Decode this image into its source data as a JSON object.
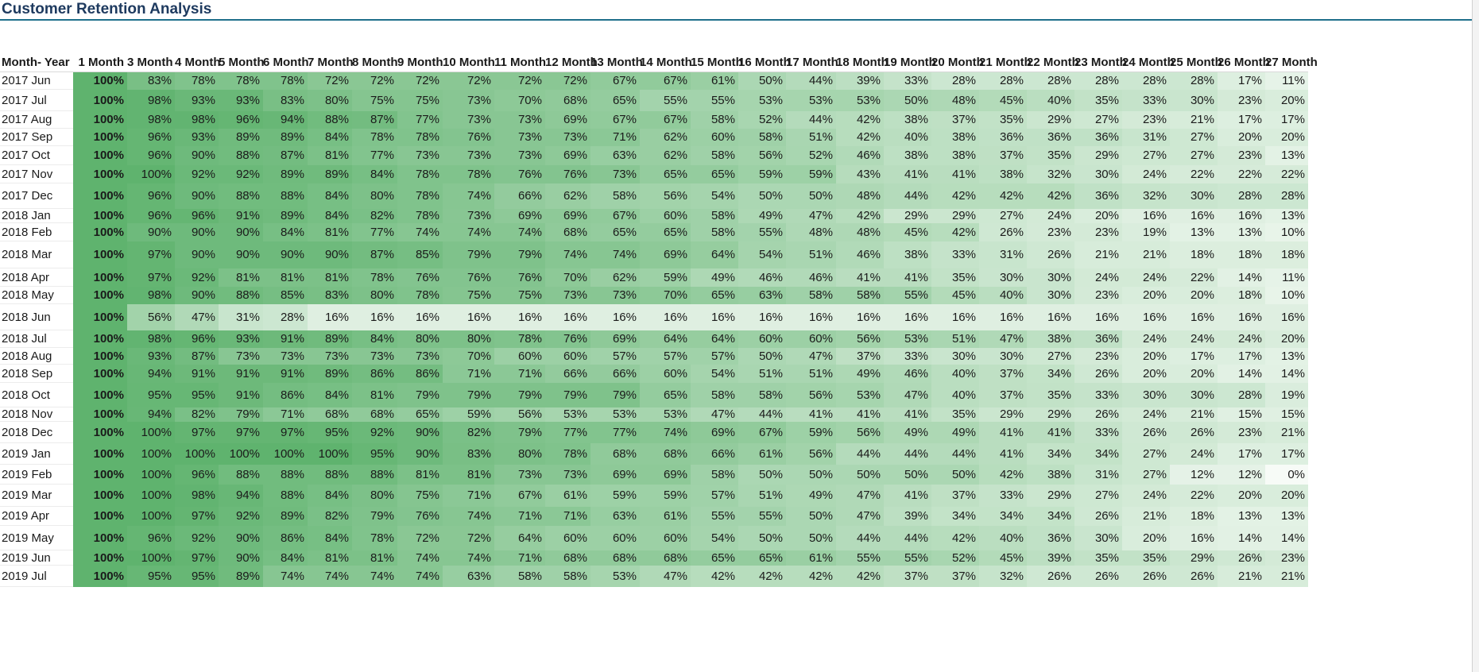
{
  "title": "Customer Retention Analysis",
  "colors": {
    "high": "#5fb36e",
    "low": "#f7fbf7",
    "title_rule": "#1f6f8b",
    "title_text": "#1e3a5f"
  },
  "table": {
    "headers": [
      "Month- Year",
      "1 Month",
      "3 Month",
      "4 Month",
      "5 Month",
      "6 Month",
      "7 Month",
      "8 Month",
      "9 Month",
      "10 Month",
      "11 Month",
      "12 Month",
      "13 Month",
      "14 Month",
      "15 Month",
      "16 Month",
      "17 Month",
      "18 Month",
      "19 Month",
      "20 Month",
      "21 Month",
      "22 Month",
      "23 Month",
      "24 Month",
      "25 Month",
      "26 Month",
      "27 Month"
    ],
    "rows": [
      {
        "label": "2017 Jun",
        "values": [
          100,
          83,
          78,
          78,
          78,
          72,
          72,
          72,
          72,
          72,
          72,
          67,
          67,
          61,
          50,
          44,
          39,
          33,
          28,
          28,
          28,
          28,
          28,
          28,
          17,
          11
        ]
      },
      {
        "label": "2017 Jul",
        "values": [
          100,
          98,
          93,
          93,
          83,
          80,
          75,
          75,
          73,
          70,
          68,
          65,
          55,
          55,
          53,
          53,
          53,
          50,
          48,
          45,
          40,
          35,
          33,
          30,
          23,
          20
        ]
      },
      {
        "label": "2017 Aug",
        "values": [
          100,
          98,
          98,
          96,
          94,
          88,
          87,
          77,
          73,
          73,
          69,
          67,
          67,
          58,
          52,
          44,
          42,
          38,
          37,
          35,
          29,
          27,
          23,
          21,
          17,
          17
        ]
      },
      {
        "label": "2017 Sep",
        "values": [
          100,
          96,
          93,
          89,
          89,
          84,
          78,
          78,
          76,
          73,
          73,
          71,
          62,
          60,
          58,
          51,
          42,
          40,
          38,
          36,
          36,
          36,
          31,
          27,
          20,
          20
        ]
      },
      {
        "label": "2017 Oct",
        "values": [
          100,
          96,
          90,
          88,
          87,
          81,
          77,
          73,
          73,
          73,
          69,
          63,
          62,
          58,
          56,
          52,
          46,
          38,
          38,
          37,
          35,
          29,
          27,
          27,
          23,
          13
        ]
      },
      {
        "label": "2017 Nov",
        "values": [
          100,
          100,
          92,
          92,
          89,
          89,
          84,
          78,
          78,
          76,
          76,
          73,
          65,
          65,
          59,
          59,
          43,
          41,
          41,
          38,
          32,
          30,
          24,
          22,
          22,
          22
        ]
      },
      {
        "label": "2017 Dec",
        "values": [
          100,
          96,
          90,
          88,
          88,
          84,
          80,
          78,
          74,
          66,
          62,
          58,
          56,
          54,
          50,
          50,
          48,
          44,
          42,
          42,
          42,
          36,
          32,
          30,
          28,
          28
        ]
      },
      {
        "label": "2018 Jan",
        "values": [
          100,
          96,
          96,
          91,
          89,
          84,
          82,
          78,
          73,
          69,
          69,
          67,
          60,
          58,
          49,
          47,
          42,
          29,
          29,
          27,
          24,
          20,
          16,
          16,
          16,
          13
        ]
      },
      {
        "label": "2018 Feb",
        "values": [
          100,
          90,
          90,
          90,
          84,
          81,
          77,
          74,
          74,
          74,
          68,
          65,
          65,
          58,
          55,
          48,
          48,
          45,
          42,
          26,
          23,
          23,
          19,
          13,
          13,
          10
        ]
      },
      {
        "label": "2018 Mar",
        "values": [
          100,
          97,
          90,
          90,
          90,
          90,
          87,
          85,
          79,
          79,
          74,
          74,
          69,
          64,
          54,
          51,
          46,
          38,
          33,
          31,
          26,
          21,
          21,
          18,
          18,
          18
        ]
      },
      {
        "label": "2018 Apr",
        "values": [
          100,
          97,
          92,
          81,
          81,
          81,
          78,
          76,
          76,
          76,
          70,
          62,
          59,
          49,
          46,
          46,
          41,
          41,
          35,
          30,
          30,
          24,
          24,
          22,
          14,
          11
        ]
      },
      {
        "label": "2018 May",
        "values": [
          100,
          98,
          90,
          88,
          85,
          83,
          80,
          78,
          75,
          75,
          73,
          73,
          70,
          65,
          63,
          58,
          58,
          55,
          45,
          40,
          30,
          23,
          20,
          20,
          18,
          10
        ]
      },
      {
        "label": "2018 Jun",
        "values": [
          100,
          56,
          47,
          31,
          28,
          16,
          16,
          16,
          16,
          16,
          16,
          16,
          16,
          16,
          16,
          16,
          16,
          16,
          16,
          16,
          16,
          16,
          16,
          16,
          16,
          16
        ]
      },
      {
        "label": "2018 Jul",
        "values": [
          100,
          98,
          96,
          93,
          91,
          89,
          84,
          80,
          80,
          78,
          76,
          69,
          64,
          64,
          60,
          60,
          56,
          53,
          51,
          47,
          38,
          36,
          24,
          24,
          24,
          20
        ]
      },
      {
        "label": "2018 Aug",
        "values": [
          100,
          93,
          87,
          73,
          73,
          73,
          73,
          73,
          70,
          60,
          60,
          57,
          57,
          57,
          50,
          47,
          37,
          33,
          30,
          30,
          27,
          23,
          20,
          17,
          17,
          13
        ]
      },
      {
        "label": "2018 Sep",
        "values": [
          100,
          94,
          91,
          91,
          91,
          89,
          86,
          86,
          71,
          71,
          66,
          66,
          60,
          54,
          51,
          51,
          49,
          46,
          40,
          37,
          34,
          26,
          20,
          20,
          14,
          14
        ]
      },
      {
        "label": "2018 Oct",
        "values": [
          100,
          95,
          95,
          91,
          86,
          84,
          81,
          79,
          79,
          79,
          79,
          79,
          65,
          58,
          58,
          56,
          53,
          47,
          40,
          37,
          35,
          33,
          30,
          30,
          28,
          19
        ]
      },
      {
        "label": "2018 Nov",
        "values": [
          100,
          94,
          82,
          79,
          71,
          68,
          68,
          65,
          59,
          56,
          53,
          53,
          53,
          47,
          44,
          41,
          41,
          41,
          35,
          29,
          29,
          26,
          24,
          21,
          15,
          15
        ]
      },
      {
        "label": "2018 Dec",
        "values": [
          100,
          100,
          97,
          97,
          97,
          95,
          92,
          90,
          82,
          79,
          77,
          77,
          74,
          69,
          67,
          59,
          56,
          49,
          49,
          41,
          41,
          33,
          26,
          26,
          23,
          21
        ]
      },
      {
        "label": "2019 Jan",
        "values": [
          100,
          100,
          100,
          100,
          100,
          100,
          95,
          90,
          83,
          80,
          78,
          68,
          68,
          66,
          61,
          56,
          44,
          44,
          44,
          41,
          34,
          34,
          27,
          24,
          17,
          17
        ]
      },
      {
        "label": "2019 Feb",
        "values": [
          100,
          100,
          96,
          88,
          88,
          88,
          88,
          81,
          81,
          73,
          73,
          69,
          69,
          58,
          50,
          50,
          50,
          50,
          50,
          42,
          38,
          31,
          27,
          12,
          12,
          0
        ]
      },
      {
        "label": "2019 Mar",
        "values": [
          100,
          100,
          98,
          94,
          88,
          84,
          80,
          75,
          71,
          67,
          61,
          59,
          59,
          57,
          51,
          49,
          47,
          41,
          37,
          33,
          29,
          27,
          24,
          22,
          20,
          20
        ]
      },
      {
        "label": "2019 Apr",
        "values": [
          100,
          100,
          97,
          92,
          89,
          82,
          79,
          76,
          74,
          71,
          71,
          63,
          61,
          55,
          55,
          50,
          47,
          39,
          34,
          34,
          34,
          26,
          21,
          18,
          13,
          13
        ]
      },
      {
        "label": "2019 May",
        "values": [
          100,
          96,
          92,
          90,
          86,
          84,
          78,
          72,
          72,
          64,
          60,
          60,
          60,
          54,
          50,
          50,
          44,
          44,
          42,
          40,
          36,
          30,
          20,
          16,
          14,
          14
        ]
      },
      {
        "label": "2019 Jun",
        "values": [
          100,
          100,
          97,
          90,
          84,
          81,
          81,
          74,
          74,
          71,
          68,
          68,
          68,
          65,
          65,
          61,
          55,
          55,
          52,
          45,
          39,
          35,
          35,
          29,
          26,
          23
        ]
      },
      {
        "label": "2019 Jul",
        "values": [
          100,
          95,
          95,
          89,
          74,
          74,
          74,
          74,
          63,
          58,
          58,
          53,
          47,
          42,
          42,
          42,
          42,
          37,
          37,
          32,
          26,
          26,
          26,
          26,
          21,
          21
        ]
      }
    ]
  }
}
